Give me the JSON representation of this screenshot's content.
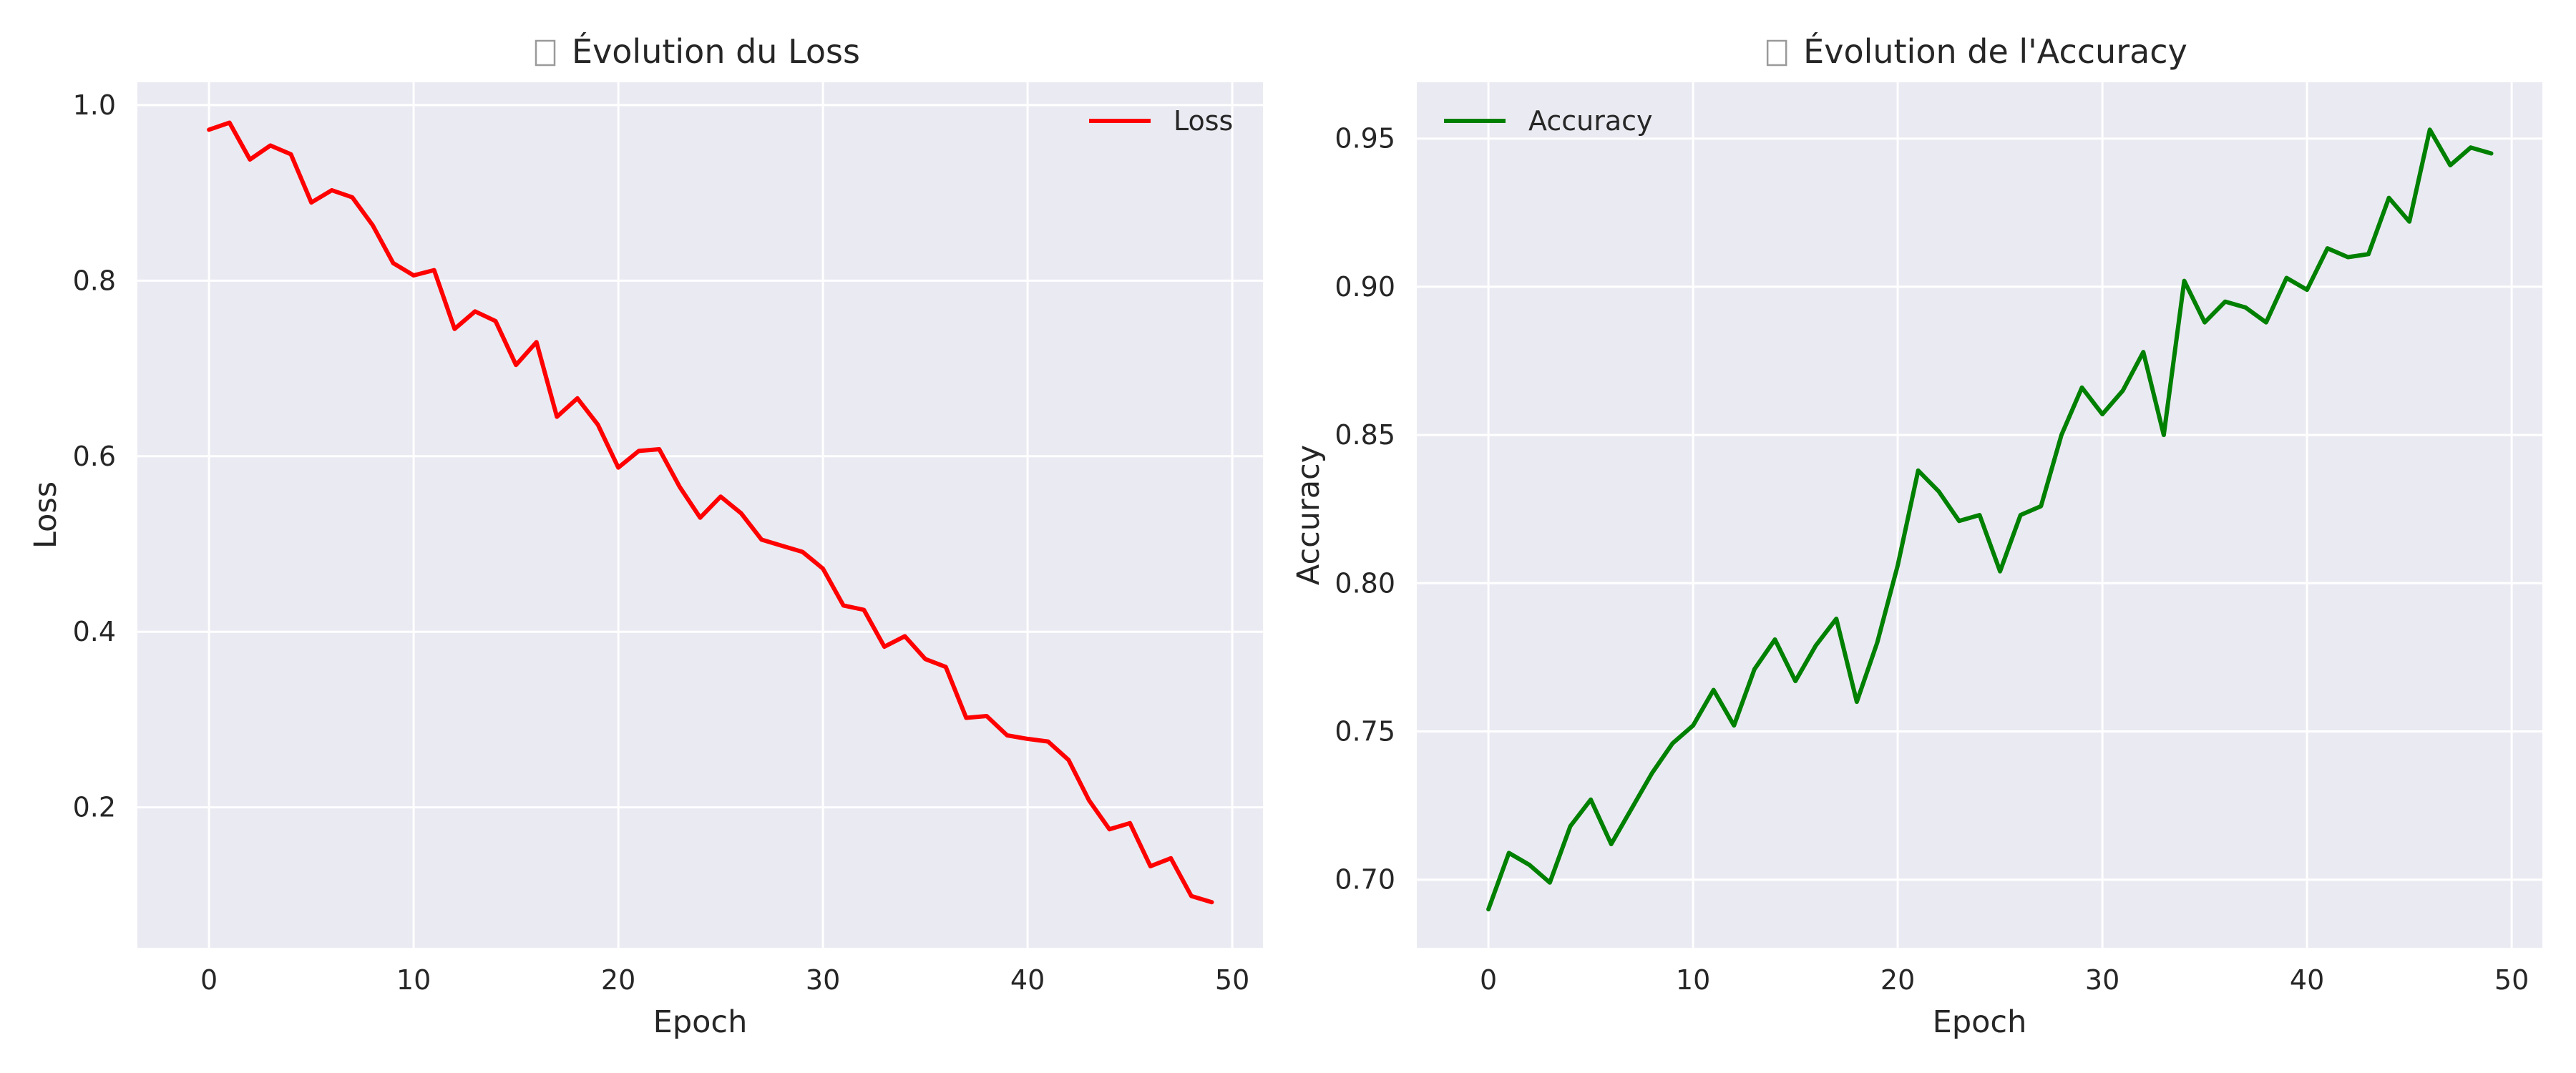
{
  "chart_data": [
    {
      "type": "line",
      "title": "Évolution du Loss",
      "title_icon": "missing-glyph",
      "xlabel": "Epoch",
      "ylabel": "Loss",
      "xlim": [
        -3.5,
        51.5
      ],
      "ylim": [
        0.04,
        1.026
      ],
      "xticks": [
        0,
        10,
        20,
        30,
        40,
        50
      ],
      "yticks": [
        0.2,
        0.4,
        0.6,
        0.8,
        1.0
      ],
      "grid": true,
      "background_color": "#eaeaf2",
      "legend_position": "top-right",
      "x": [
        0,
        1,
        2,
        3,
        4,
        5,
        6,
        7,
        8,
        9,
        10,
        11,
        12,
        13,
        14,
        15,
        16,
        17,
        18,
        19,
        20,
        21,
        22,
        23,
        24,
        25,
        26,
        27,
        28,
        29,
        30,
        31,
        32,
        33,
        34,
        35,
        36,
        37,
        38,
        39,
        40,
        41,
        42,
        43,
        44,
        45,
        46,
        47,
        48,
        49
      ],
      "series": [
        {
          "name": "Loss",
          "color": "#ff0000",
          "values": [
            0.972,
            0.98,
            0.938,
            0.954,
            0.944,
            0.889,
            0.903,
            0.895,
            0.863,
            0.82,
            0.806,
            0.812,
            0.745,
            0.765,
            0.754,
            0.704,
            0.73,
            0.645,
            0.666,
            0.636,
            0.587,
            0.606,
            0.608,
            0.565,
            0.53,
            0.554,
            0.535,
            0.505,
            0.498,
            0.491,
            0.472,
            0.43,
            0.425,
            0.383,
            0.395,
            0.369,
            0.36,
            0.302,
            0.304,
            0.282,
            0.278,
            0.275,
            0.254,
            0.208,
            0.175,
            0.182,
            0.133,
            0.142,
            0.099,
            0.092
          ]
        }
      ]
    },
    {
      "type": "line",
      "title": "Évolution de l'Accuracy",
      "title_icon": "missing-glyph",
      "xlabel": "Epoch",
      "ylabel": "Accuracy",
      "xlim": [
        -3.5,
        51.5
      ],
      "ylim": [
        0.677,
        0.969
      ],
      "xticks": [
        0,
        10,
        20,
        30,
        40,
        50
      ],
      "yticks": [
        0.7,
        0.75,
        0.8,
        0.85,
        0.9,
        0.95
      ],
      "grid": true,
      "background_color": "#eaeaf2",
      "legend_position": "top-left",
      "x": [
        0,
        1,
        2,
        3,
        4,
        5,
        6,
        7,
        8,
        9,
        10,
        11,
        12,
        13,
        14,
        15,
        16,
        17,
        18,
        19,
        20,
        21,
        22,
        23,
        24,
        25,
        26,
        27,
        28,
        29,
        30,
        31,
        32,
        33,
        34,
        35,
        36,
        37,
        38,
        39,
        40,
        41,
        42,
        43,
        44,
        45,
        46,
        47,
        48,
        49
      ],
      "series": [
        {
          "name": "Accuracy",
          "color": "#008000",
          "values": [
            0.69,
            0.709,
            0.705,
            0.699,
            0.718,
            0.727,
            0.712,
            0.724,
            0.736,
            0.746,
            0.752,
            0.764,
            0.752,
            0.771,
            0.781,
            0.767,
            0.779,
            0.788,
            0.76,
            0.78,
            0.806,
            0.838,
            0.831,
            0.821,
            0.823,
            0.804,
            0.823,
            0.826,
            0.85,
            0.866,
            0.857,
            0.865,
            0.878,
            0.85,
            0.902,
            0.888,
            0.895,
            0.893,
            0.888,
            0.903,
            0.899,
            0.913,
            0.91,
            0.911,
            0.93,
            0.922,
            0.953,
            0.941,
            0.947,
            0.945
          ]
        }
      ]
    }
  ]
}
